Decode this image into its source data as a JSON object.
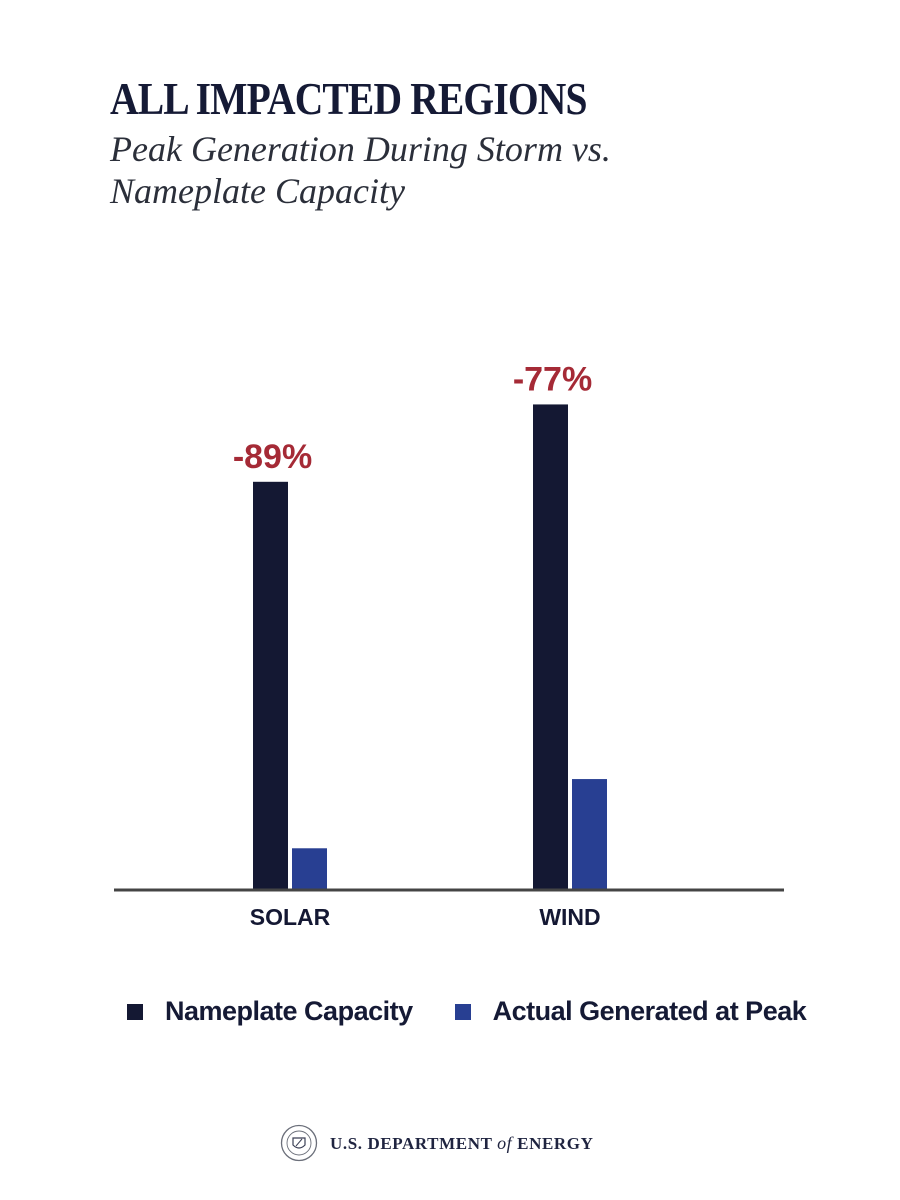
{
  "header": {
    "title": "ALL IMPACTED REGIONS",
    "subtitle": "Peak Generation During Storm vs. Nameplate Capacity"
  },
  "colors": {
    "nameplate": "#141833",
    "actual": "#283f92",
    "change_label": "#a52a36",
    "axis": "#444444"
  },
  "chart_data": {
    "type": "bar",
    "title": "ALL IMPACTED REGIONS",
    "subtitle": "Peak Generation During Storm vs. Nameplate Capacity",
    "categories": [
      "SOLAR",
      "WIND"
    ],
    "series": [
      {
        "name": "Nameplate Capacity",
        "values": [
          100,
          119
        ]
      },
      {
        "name": "Actual Generated at Peak",
        "values": [
          10,
          27
        ]
      }
    ],
    "change_labels": [
      "-89%",
      "-77%"
    ],
    "xlabel": "",
    "ylabel": "",
    "ylim": [
      0,
      125
    ],
    "grid": false,
    "legend": "bottom"
  },
  "legend": {
    "items": [
      {
        "label": "Nameplate Capacity"
      },
      {
        "label": "Actual Generated at Peak"
      }
    ]
  },
  "footer": {
    "agency_prefix": "U.S. DEPARTMENT",
    "agency_of": "of",
    "agency_suffix": "ENERGY",
    "seal_icon": "doe-seal-icon"
  }
}
